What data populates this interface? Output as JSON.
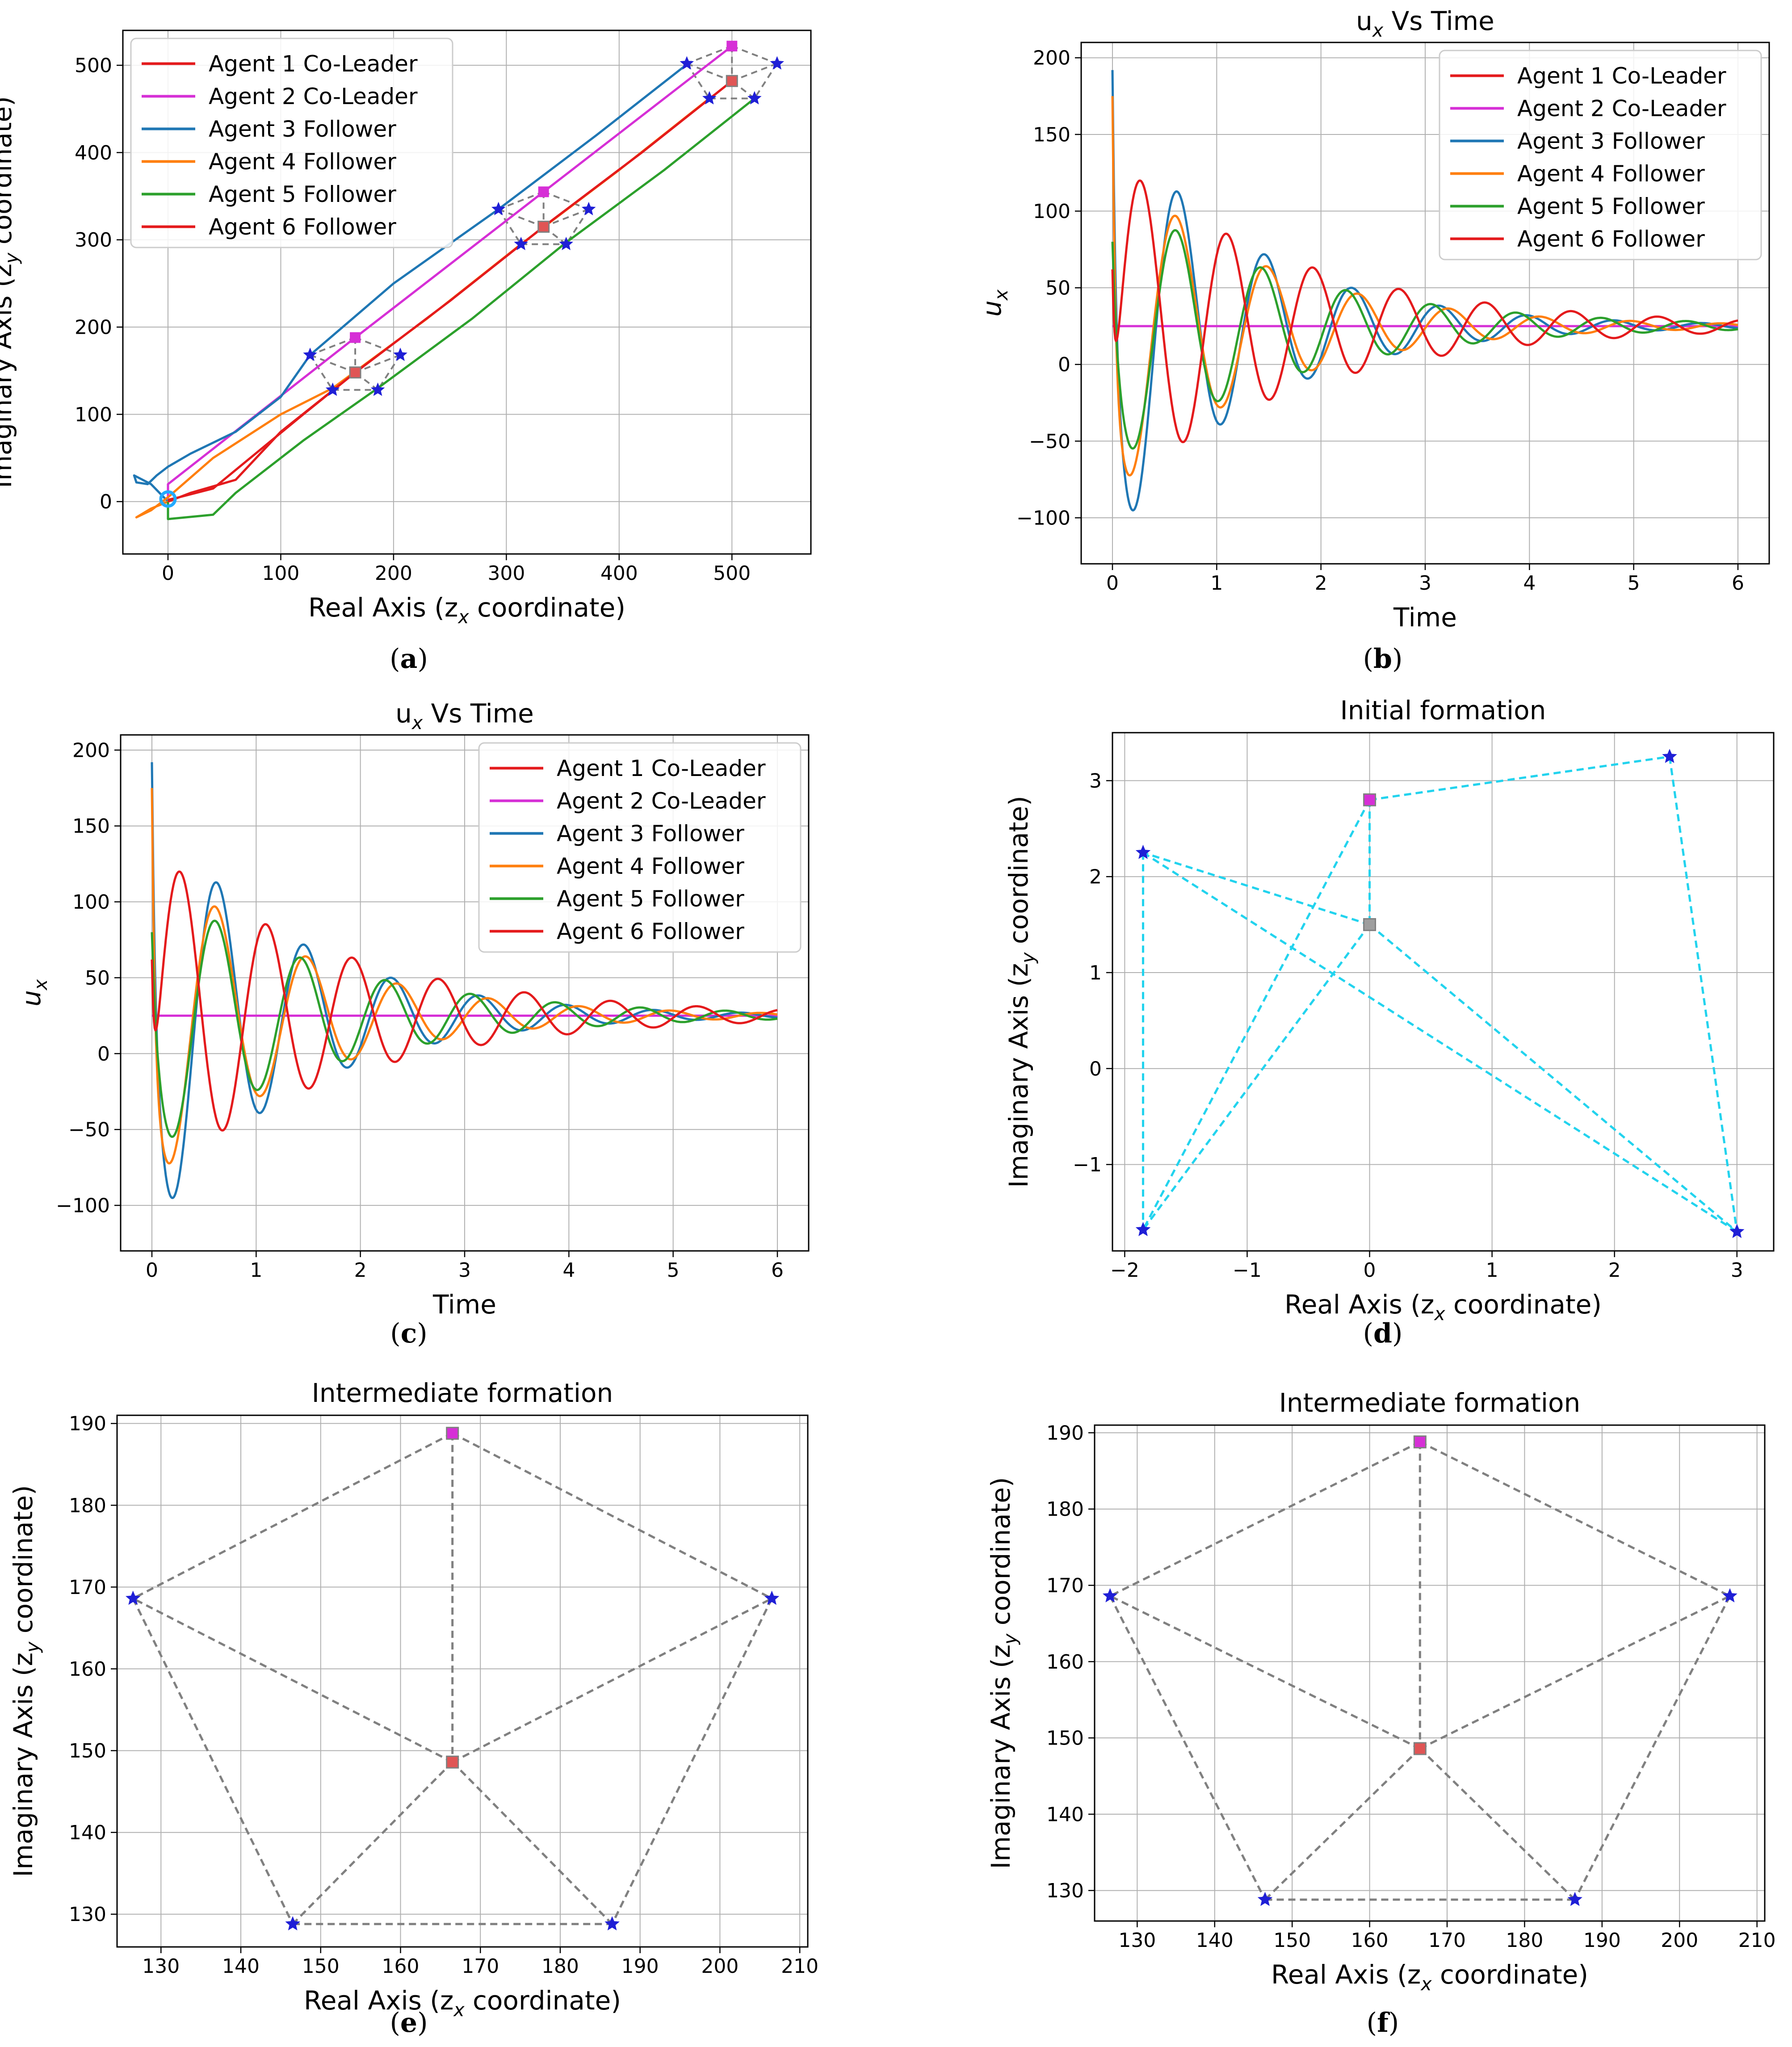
{
  "figure": {
    "captions": [
      "(a)",
      "(b)",
      "(c)",
      "(d)",
      "(e)",
      "(f)"
    ]
  },
  "chart_data": [
    {
      "id": "a",
      "type": "line",
      "title": "",
      "caption": "(a)",
      "xlabel": "Real Axis (z",
      "xlabel_sub": "x",
      "xlabel_tail": " coordinate)",
      "ylabel": "Imaginary Axis (z",
      "ylabel_sub": "y",
      "ylabel_tail": " coordinate)",
      "xlim": [
        -40,
        570
      ],
      "ylim": [
        -60,
        540
      ],
      "xticks": [
        0,
        100,
        200,
        300,
        400,
        500
      ],
      "yticks": [
        0,
        100,
        200,
        300,
        400,
        500
      ],
      "grid": true,
      "legend_position": "upper-left",
      "legend": [
        {
          "label": "Agent 1 Co-Leader",
          "color": "#e41a1c"
        },
        {
          "label": "Agent 2 Co-Leader",
          "color": "#d62fd6"
        },
        {
          "label": "Agent 3 Follower",
          "color": "#1f77b4"
        },
        {
          "label": "Agent 4 Follower",
          "color": "#ff7f0e"
        },
        {
          "label": "Agent 5 Follower",
          "color": "#2ca02c"
        },
        {
          "label": "Agent 6 Follower",
          "color": "#e41a1c"
        }
      ],
      "trajectories": [
        {
          "name": "Agent 1 Co-Leader",
          "color": "#e41a1c",
          "x": [
            0,
            10,
            40,
            120,
            166,
            250,
            333,
            420,
            500
          ],
          "y": [
            2,
            5,
            15,
            100,
            148,
            230,
            315,
            400,
            482
          ]
        },
        {
          "name": "Agent 2 Co-Leader",
          "color": "#d62fd6",
          "x": [
            0,
            0,
            166,
            333,
            500
          ],
          "y": [
            3,
            20,
            188,
            355,
            522
          ]
        },
        {
          "name": "Agent 3 Follower",
          "color": "#1f77b4",
          "x": [
            0,
            -15,
            -30,
            -28,
            -18,
            -10,
            0,
            20,
            60,
            100,
            126,
            200,
            293,
            380,
            460
          ],
          "y": [
            0,
            20,
            30,
            22,
            20,
            30,
            40,
            55,
            80,
            120,
            168,
            250,
            335,
            420,
            501
          ]
        },
        {
          "name": "Agent 4 Follower",
          "color": "#ff7f0e",
          "x": [
            0,
            -15,
            -28,
            -15,
            0,
            40,
            100,
            146,
            230,
            313,
            400,
            480
          ],
          "y": [
            0,
            -8,
            -18,
            -10,
            5,
            50,
            100,
            130,
            210,
            295,
            380,
            462
          ]
        },
        {
          "name": "Agent 5 Follower",
          "color": "#2ca02c",
          "x": [
            0,
            0,
            40,
            60,
            120,
            186,
            270,
            353,
            440,
            520
          ],
          "y": [
            0,
            -20,
            -15,
            10,
            70,
            130,
            210,
            297,
            380,
            462
          ]
        },
        {
          "name": "Agent 6 Follower",
          "color": "#e41a1c",
          "x": [
            0,
            20,
            60,
            100,
            166,
            250,
            333,
            420,
            500
          ],
          "y": [
            0,
            10,
            25,
            80,
            148,
            230,
            315,
            400,
            482
          ]
        }
      ],
      "formations": [
        {
          "center": [
            166,
            148
          ],
          "top": [
            166,
            188
          ],
          "left": [
            126,
            168
          ],
          "right": [
            206,
            168
          ],
          "bl": [
            146,
            128
          ],
          "br": [
            186,
            128
          ]
        },
        {
          "center": [
            333,
            315
          ],
          "top": [
            333,
            355
          ],
          "left": [
            293,
            335
          ],
          "right": [
            373,
            335
          ],
          "bl": [
            313,
            295
          ],
          "br": [
            353,
            295
          ]
        },
        {
          "center": [
            500,
            482
          ],
          "top": [
            500,
            522
          ],
          "left": [
            460,
            502
          ],
          "right": [
            540,
            502
          ],
          "bl": [
            480,
            462
          ],
          "br": [
            520,
            462
          ]
        }
      ]
    },
    {
      "id": "b",
      "type": "line",
      "title": "u",
      "title_sub": "x",
      "title_tail": " Vs Time",
      "caption": "(b)",
      "xlabel": "Time",
      "ylabel": "u",
      "ylabel_sub": "x",
      "xlim": [
        -0.3,
        6.3
      ],
      "ylim": [
        -130,
        210
      ],
      "xticks": [
        0,
        1,
        2,
        3,
        4,
        5,
        6
      ],
      "yticks": [
        -100,
        -50,
        0,
        50,
        100,
        150,
        200
      ],
      "grid": true,
      "legend_position": "upper-right",
      "legend": [
        {
          "label": "Agent 1 Co-Leader",
          "color": "#e41a1c"
        },
        {
          "label": "Agent 2 Co-Leader",
          "color": "#d62fd6"
        },
        {
          "label": "Agent 3 Follower",
          "color": "#1f77b4"
        },
        {
          "label": "Agent 4 Follower",
          "color": "#ff7f0e"
        },
        {
          "label": "Agent 5 Follower",
          "color": "#2ca02c"
        },
        {
          "label": "Agent 6 Follower",
          "color": "#e41a1c"
        }
      ],
      "series": [
        {
          "name": "Agent 2 Co-Leader",
          "color": "#d62fd6",
          "steady": 25,
          "start": 25,
          "kind": "flat"
        },
        {
          "name": "Agent 3 Follower",
          "color": "#1f77b4",
          "steady": 25,
          "start": 192,
          "kind": "osc",
          "amp": -140,
          "decay": 0.75,
          "omega": 7.5,
          "phase": 0.0
        },
        {
          "name": "Agent 4 Follower",
          "color": "#ff7f0e",
          "steady": 25,
          "start": 175,
          "kind": "osc",
          "amp": -110,
          "decay": 0.7,
          "omega": 7.2,
          "phase": 0.3
        },
        {
          "name": "Agent 5 Follower",
          "color": "#2ca02c",
          "steady": 25,
          "start": 80,
          "kind": "osc",
          "amp": -90,
          "decay": 0.6,
          "omega": 7.7,
          "phase": 0.0
        },
        {
          "name": "Agent 6 Follower",
          "color": "#e41a1c",
          "steady": 25,
          "start": 62,
          "kind": "osc",
          "amp": 110,
          "decay": 0.55,
          "omega": 7.6,
          "phase": -0.5
        }
      ]
    },
    {
      "id": "c",
      "type": "line",
      "title": "u",
      "title_sub": "x",
      "title_tail": " Vs Time",
      "caption": "(c)",
      "xlabel": "Time",
      "ylabel": "u",
      "ylabel_sub": "x",
      "xlim": [
        -0.3,
        6.3
      ],
      "ylim": [
        -130,
        210
      ],
      "xticks": [
        0,
        1,
        2,
        3,
        4,
        5,
        6
      ],
      "yticks": [
        -100,
        -50,
        0,
        50,
        100,
        150,
        200
      ],
      "grid": true,
      "legend_position": "upper-right",
      "legend": [
        {
          "label": "Agent 1 Co-Leader",
          "color": "#e41a1c"
        },
        {
          "label": "Agent 2 Co-Leader",
          "color": "#d62fd6"
        },
        {
          "label": "Agent 3 Follower",
          "color": "#1f77b4"
        },
        {
          "label": "Agent 4 Follower",
          "color": "#ff7f0e"
        },
        {
          "label": "Agent 5 Follower",
          "color": "#2ca02c"
        },
        {
          "label": "Agent 6 Follower",
          "color": "#e41a1c"
        }
      ],
      "series": [
        {
          "name": "Agent 2 Co-Leader",
          "color": "#d62fd6",
          "steady": 25,
          "start": 25,
          "kind": "flat"
        },
        {
          "name": "Agent 3 Follower",
          "color": "#1f77b4",
          "steady": 25,
          "start": 192,
          "kind": "osc",
          "amp": -140,
          "decay": 0.75,
          "omega": 7.5,
          "phase": 0.0
        },
        {
          "name": "Agent 4 Follower",
          "color": "#ff7f0e",
          "steady": 25,
          "start": 175,
          "kind": "osc",
          "amp": -110,
          "decay": 0.7,
          "omega": 7.2,
          "phase": 0.3
        },
        {
          "name": "Agent 5 Follower",
          "color": "#2ca02c",
          "steady": 25,
          "start": 80,
          "kind": "osc",
          "amp": -90,
          "decay": 0.6,
          "omega": 7.7,
          "phase": 0.0
        },
        {
          "name": "Agent 6 Follower",
          "color": "#e41a1c",
          "steady": 25,
          "start": 62,
          "kind": "osc",
          "amp": 110,
          "decay": 0.55,
          "omega": 7.6,
          "phase": -0.5
        }
      ]
    },
    {
      "id": "d",
      "type": "scatter",
      "title": "Initial formation",
      "caption": "(d)",
      "xlabel": "Real Axis (z",
      "xlabel_sub": "x",
      "xlabel_tail": " coordinate)",
      "ylabel": "Imaginary Axis (z",
      "ylabel_sub": "y",
      "ylabel_tail": " coordinate)",
      "xlim": [
        -2.1,
        3.3
      ],
      "ylim": [
        -1.9,
        3.5
      ],
      "xticks": [
        -2,
        -1,
        0,
        1,
        2,
        3
      ],
      "yticks": [
        -1,
        0,
        1,
        2,
        3
      ],
      "grid": true,
      "edge_color": "#22d3ee",
      "points": [
        {
          "x": 0,
          "y": 2.8,
          "marker": "square",
          "color": "#d62fd6"
        },
        {
          "x": 0,
          "y": 1.5,
          "marker": "square",
          "color": "#9e9e9e"
        },
        {
          "x": -1.85,
          "y": 2.25,
          "marker": "star",
          "color": "#1f1fd6"
        },
        {
          "x": 2.45,
          "y": 3.25,
          "marker": "star",
          "color": "#1f1fd6"
        },
        {
          "x": -1.85,
          "y": -1.68,
          "marker": "star",
          "color": "#1f1fd6"
        },
        {
          "x": 3.0,
          "y": -1.7,
          "marker": "star",
          "color": "#1f1fd6"
        }
      ],
      "edges": [
        [
          0,
          1
        ],
        [
          0,
          3
        ],
        [
          0,
          4
        ],
        [
          1,
          2
        ],
        [
          1,
          5
        ],
        [
          1,
          4
        ],
        [
          2,
          4
        ],
        [
          2,
          5
        ],
        [
          3,
          5
        ]
      ]
    },
    {
      "id": "e",
      "type": "scatter",
      "title": "Intermediate formation",
      "caption": "(e)",
      "xlabel": "Real Axis (z",
      "xlabel_sub": "x",
      "xlabel_tail": " coordinate)",
      "ylabel": "Imaginary Axis (z",
      "ylabel_sub": "y",
      "ylabel_tail": " coordinate)",
      "xlim": [
        124.5,
        211
      ],
      "ylim": [
        126,
        191
      ],
      "xticks": [
        130,
        140,
        150,
        160,
        170,
        180,
        190,
        200,
        210
      ],
      "yticks": [
        130,
        140,
        150,
        160,
        170,
        180,
        190
      ],
      "grid": true,
      "edge_color": "#808080",
      "points": [
        {
          "x": 166.5,
          "y": 188.8,
          "marker": "square",
          "color": "#d62fd6"
        },
        {
          "x": 166.5,
          "y": 148.6,
          "marker": "square",
          "color": "#e05555"
        },
        {
          "x": 126.5,
          "y": 168.6,
          "marker": "star",
          "color": "#1f1fd6"
        },
        {
          "x": 206.5,
          "y": 168.6,
          "marker": "star",
          "color": "#1f1fd6"
        },
        {
          "x": 146.5,
          "y": 128.8,
          "marker": "star",
          "color": "#1f1fd6"
        },
        {
          "x": 186.5,
          "y": 128.8,
          "marker": "star",
          "color": "#1f1fd6"
        }
      ],
      "edges": [
        [
          0,
          1
        ],
        [
          0,
          2
        ],
        [
          0,
          3
        ],
        [
          1,
          2
        ],
        [
          1,
          3
        ],
        [
          1,
          4
        ],
        [
          1,
          5
        ],
        [
          2,
          4
        ],
        [
          3,
          5
        ],
        [
          4,
          5
        ]
      ]
    },
    {
      "id": "f",
      "type": "scatter",
      "title": "Intermediate formation",
      "caption": "(f)",
      "xlabel": "Real Axis (z",
      "xlabel_sub": "x",
      "xlabel_tail": " coordinate)",
      "ylabel": "Imaginary Axis (z",
      "ylabel_sub": "y",
      "ylabel_tail": " coordinate)",
      "xlim": [
        124.5,
        211
      ],
      "ylim": [
        126,
        191
      ],
      "xticks": [
        130,
        140,
        150,
        160,
        170,
        180,
        190,
        200,
        210
      ],
      "yticks": [
        130,
        140,
        150,
        160,
        170,
        180,
        190
      ],
      "grid": true,
      "edge_color": "#808080",
      "points": [
        {
          "x": 166.5,
          "y": 188.8,
          "marker": "square",
          "color": "#d62fd6"
        },
        {
          "x": 166.5,
          "y": 148.6,
          "marker": "square",
          "color": "#e05555"
        },
        {
          "x": 126.5,
          "y": 168.6,
          "marker": "star",
          "color": "#1f1fd6"
        },
        {
          "x": 206.5,
          "y": 168.6,
          "marker": "star",
          "color": "#1f1fd6"
        },
        {
          "x": 146.5,
          "y": 128.8,
          "marker": "star",
          "color": "#1f1fd6"
        },
        {
          "x": 186.5,
          "y": 128.8,
          "marker": "star",
          "color": "#1f1fd6"
        }
      ],
      "edges": [
        [
          0,
          1
        ],
        [
          0,
          2
        ],
        [
          0,
          3
        ],
        [
          1,
          2
        ],
        [
          1,
          3
        ],
        [
          1,
          4
        ],
        [
          1,
          5
        ],
        [
          2,
          4
        ],
        [
          3,
          5
        ],
        [
          4,
          5
        ]
      ]
    }
  ]
}
